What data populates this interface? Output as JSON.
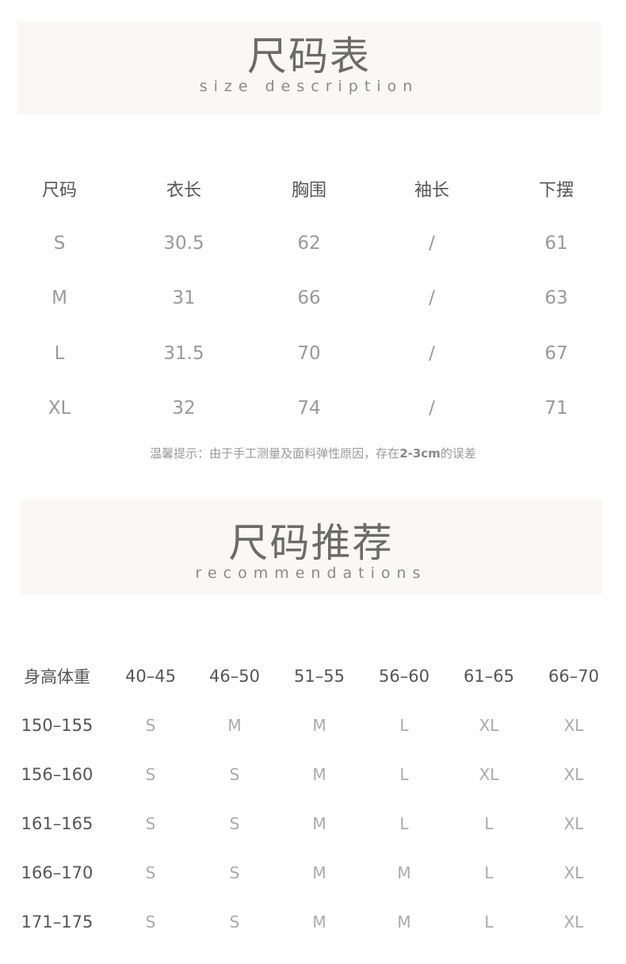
{
  "size_section": {
    "title": "尺码表",
    "subtitle": "size description",
    "headers": [
      "尺码",
      "衣长",
      "胸围",
      "袖长",
      "下摆"
    ],
    "rows": [
      [
        "S",
        "30.5",
        "62",
        "/",
        "61"
      ],
      [
        "M",
        "31",
        "66",
        "/",
        "63"
      ],
      [
        "L",
        "31.5",
        "70",
        "/",
        "67"
      ],
      [
        "XL",
        "32",
        "74",
        "/",
        "71"
      ]
    ],
    "note_prefix": "温馨提示：由于手工测量及面料弹性原因，存在",
    "note_bold": "2-3cm",
    "note_suffix": "的误差"
  },
  "recommend_section": {
    "title": "尺码推荐",
    "subtitle": "recommendations",
    "headers": [
      "身高体重",
      "40–45",
      "46–50",
      "51–55",
      "56–60",
      "61–65",
      "66–70"
    ],
    "rows": [
      [
        "150–155",
        "S",
        "M",
        "M",
        "L",
        "XL",
        "XL"
      ],
      [
        "156–160",
        "S",
        "S",
        "M",
        "L",
        "XL",
        "XL"
      ],
      [
        "161–165",
        "S",
        "S",
        "M",
        "L",
        "L",
        "XL"
      ],
      [
        "166–170",
        "S",
        "S",
        "M",
        "M",
        "L",
        "XL"
      ],
      [
        "171–175",
        "S",
        "S",
        "M",
        "M",
        "L",
        "XL"
      ]
    ]
  }
}
